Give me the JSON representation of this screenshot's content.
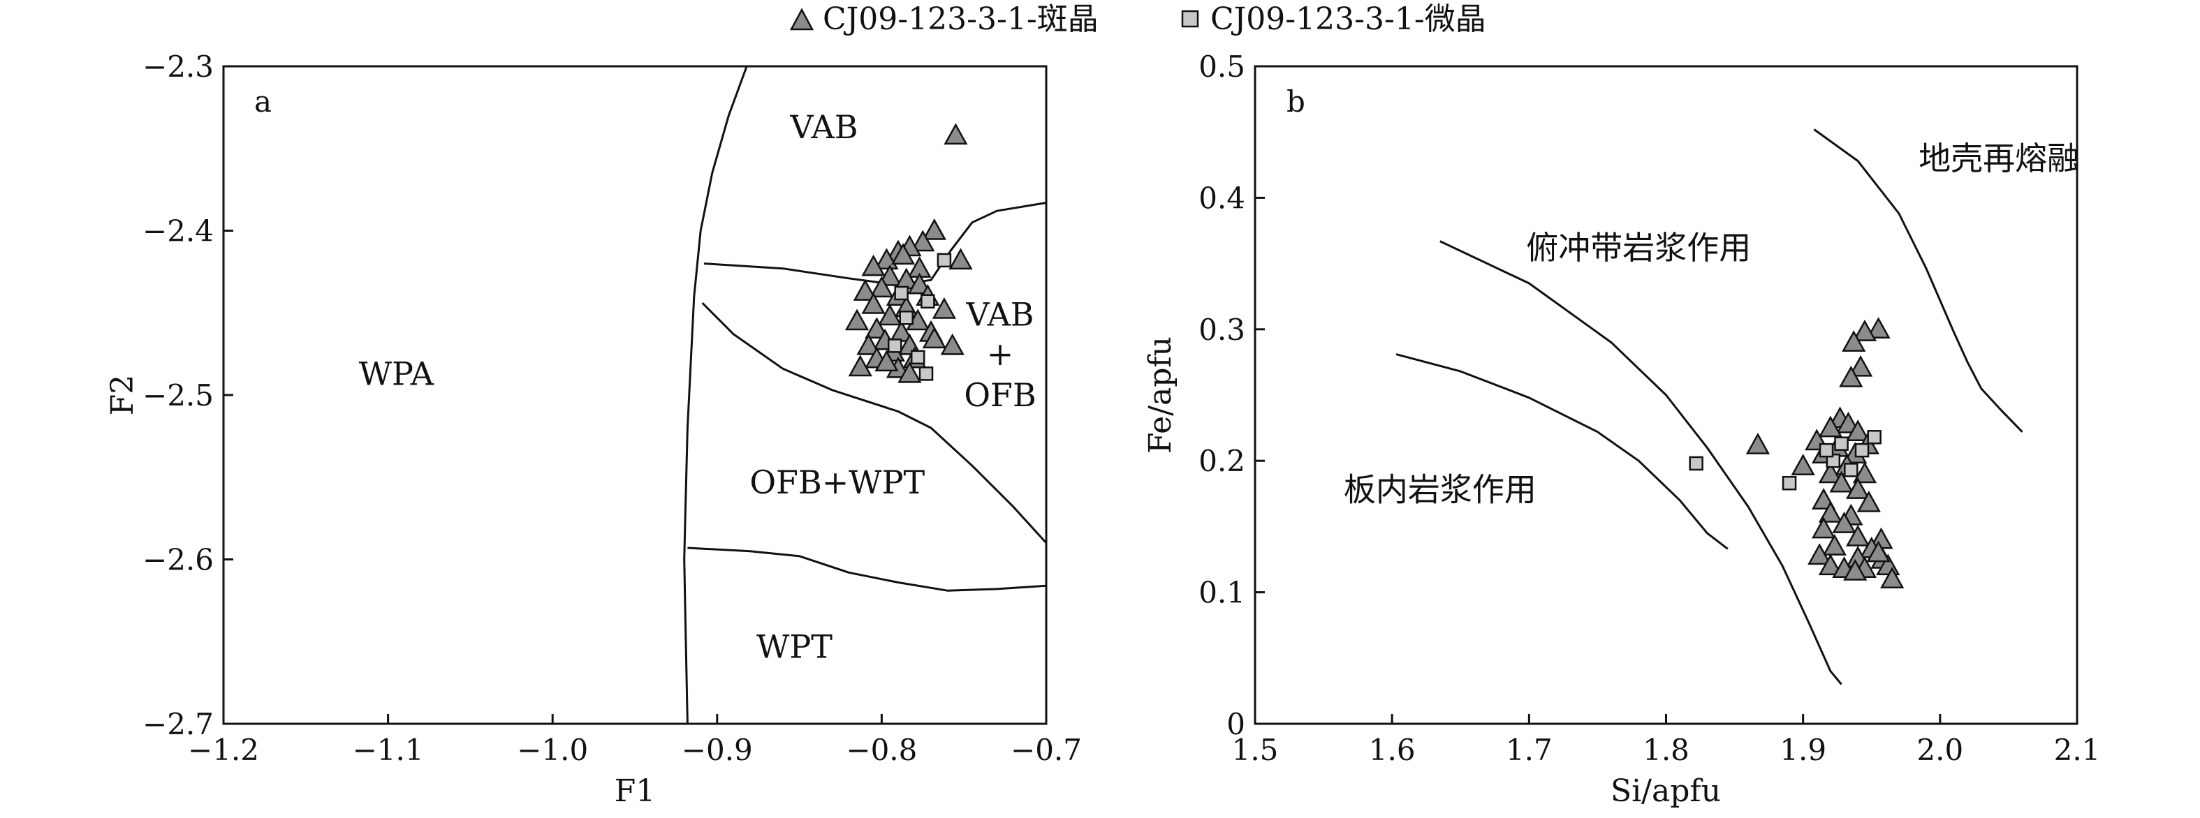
{
  "legend": {
    "items": [
      {
        "label": "CJ09-123-3-1-斑晶",
        "marker": "triangle",
        "color": "#8c8c8c"
      },
      {
        "label": "CJ09-123-3-1-微晶",
        "marker": "square",
        "color": "#c8c8c8"
      }
    ],
    "placement": "top-center"
  },
  "chart_data": [
    {
      "type": "scatter",
      "panel_label": "a",
      "xlabel": "F1",
      "ylabel": "F2",
      "xlim": [
        -1.2,
        -0.7
      ],
      "ylim": [
        -2.7,
        -2.3
      ],
      "xticks": [
        -1.2,
        -1.1,
        -1.0,
        -0.9,
        -0.8,
        -0.7
      ],
      "yticks": [
        -2.3,
        -2.4,
        -2.5,
        -2.6,
        -2.7
      ],
      "xtick_labels": [
        "−1.2",
        "−1.1",
        "−1.0",
        "−0.9",
        "−0.8",
        "−0.7"
      ],
      "ytick_labels": [
        "−2.3",
        "−2.4",
        "−2.5",
        "−2.6",
        "−2.7"
      ],
      "field_labels": [
        {
          "text": "VAB",
          "x": -0.835,
          "y": -2.337
        },
        {
          "text": "WPA",
          "x": -1.095,
          "y": -2.487
        },
        {
          "text": "VAB",
          "x": -0.728,
          "y": -2.451
        },
        {
          "text": "+",
          "x": -0.728,
          "y": -2.475
        },
        {
          "text": "OFB",
          "x": -0.728,
          "y": -2.5
        },
        {
          "text": "OFB+WPT",
          "x": -0.827,
          "y": -2.553
        },
        {
          "text": "WPT",
          "x": -0.853,
          "y": -2.653
        }
      ],
      "boundaries": [
        {
          "name": "WPA boundary",
          "points": [
            [
              -0.882,
              -2.3
            ],
            [
              -0.893,
              -2.33
            ],
            [
              -0.903,
              -2.365
            ],
            [
              -0.91,
              -2.4
            ],
            [
              -0.914,
              -2.44
            ],
            [
              -0.916,
              -2.48
            ],
            [
              -0.918,
              -2.52
            ],
            [
              -0.919,
              -2.56
            ],
            [
              -0.92,
              -2.6
            ],
            [
              -0.919,
              -2.65
            ],
            [
              -0.918,
              -2.7
            ]
          ]
        },
        {
          "name": "VAB lower boundary",
          "points": [
            [
              -0.908,
              -2.42
            ],
            [
              -0.86,
              -2.423
            ],
            [
              -0.82,
              -2.429
            ],
            [
              -0.79,
              -2.433
            ],
            [
              -0.77,
              -2.43
            ],
            [
              -0.758,
              -2.412
            ],
            [
              -0.745,
              -2.395
            ],
            [
              -0.73,
              -2.388
            ],
            [
              -0.7,
              -2.383
            ]
          ]
        },
        {
          "name": "OFB upper boundary",
          "points": [
            [
              -0.909,
              -2.444
            ],
            [
              -0.89,
              -2.463
            ],
            [
              -0.86,
              -2.484
            ],
            [
              -0.83,
              -2.497
            ],
            [
              -0.79,
              -2.51
            ],
            [
              -0.77,
              -2.52
            ],
            [
              -0.745,
              -2.543
            ],
            [
              -0.72,
              -2.568
            ],
            [
              -0.7,
              -2.59
            ]
          ]
        },
        {
          "name": "WPT upper boundary",
          "points": [
            [
              -0.918,
              -2.593
            ],
            [
              -0.88,
              -2.595
            ],
            [
              -0.85,
              -2.598
            ],
            [
              -0.82,
              -2.608
            ],
            [
              -0.79,
              -2.614
            ],
            [
              -0.76,
              -2.619
            ],
            [
              -0.73,
              -2.618
            ],
            [
              -0.7,
              -2.616
            ]
          ]
        }
      ],
      "series": [
        {
          "name": "CJ09-123-3-1-斑晶",
          "marker": "triangle",
          "points": [
            [
              -0.755,
              -2.342
            ],
            [
              -0.768,
              -2.4
            ],
            [
              -0.775,
              -2.407
            ],
            [
              -0.783,
              -2.41
            ],
            [
              -0.79,
              -2.413
            ],
            [
              -0.797,
              -2.418
            ],
            [
              -0.787,
              -2.415
            ],
            [
              -0.752,
              -2.418
            ],
            [
              -0.777,
              -2.423
            ],
            [
              -0.805,
              -2.422
            ],
            [
              -0.795,
              -2.428
            ],
            [
              -0.785,
              -2.43
            ],
            [
              -0.777,
              -2.433
            ],
            [
              -0.8,
              -2.435
            ],
            [
              -0.81,
              -2.437
            ],
            [
              -0.79,
              -2.44
            ],
            [
              -0.772,
              -2.44
            ],
            [
              -0.805,
              -2.445
            ],
            [
              -0.785,
              -2.447
            ],
            [
              -0.762,
              -2.448
            ],
            [
              -0.795,
              -2.452
            ],
            [
              -0.815,
              -2.455
            ],
            [
              -0.778,
              -2.455
            ],
            [
              -0.803,
              -2.46
            ],
            [
              -0.788,
              -2.462
            ],
            [
              -0.77,
              -2.462
            ],
            [
              -0.798,
              -2.467
            ],
            [
              -0.808,
              -2.47
            ],
            [
              -0.783,
              -2.47
            ],
            [
              -0.757,
              -2.47
            ],
            [
              -0.793,
              -2.474
            ],
            [
              -0.803,
              -2.478
            ],
            [
              -0.78,
              -2.478
            ],
            [
              -0.768,
              -2.466
            ],
            [
              -0.813,
              -2.483
            ],
            [
              -0.79,
              -2.484
            ],
            [
              -0.783,
              -2.487
            ],
            [
              -0.797,
              -2.48
            ]
          ]
        },
        {
          "name": "CJ09-123-3-1-微晶",
          "marker": "square",
          "points": [
            [
              -0.762,
              -2.418
            ],
            [
              -0.788,
              -2.438
            ],
            [
              -0.772,
              -2.443
            ],
            [
              -0.785,
              -2.453
            ],
            [
              -0.792,
              -2.47
            ],
            [
              -0.778,
              -2.477
            ],
            [
              -0.773,
              -2.487
            ]
          ]
        }
      ]
    },
    {
      "type": "scatter",
      "panel_label": "b",
      "xlabel": "Si/apfu",
      "ylabel": "Fe/apfu",
      "xlim": [
        1.5,
        2.1
      ],
      "ylim": [
        0,
        0.5
      ],
      "xticks": [
        1.5,
        1.6,
        1.7,
        1.8,
        1.9,
        2.0,
        2.1
      ],
      "yticks": [
        0,
        0.1,
        0.2,
        0.3,
        0.4,
        0.5
      ],
      "xtick_labels": [
        "1.5",
        "1.6",
        "1.7",
        "1.8",
        "1.9",
        "2.0",
        "2.1"
      ],
      "ytick_labels": [
        "0",
        "0.1",
        "0.2",
        "0.3",
        "0.4",
        "0.5"
      ],
      "field_labels": [
        {
          "text": "地壳再熔融",
          "x": 2.043,
          "y": 0.43
        },
        {
          "text": "俯冲带岩浆作用",
          "x": 1.78,
          "y": 0.362
        },
        {
          "text": "板内岩浆作用",
          "x": 1.635,
          "y": 0.178
        }
      ],
      "boundaries": [
        {
          "name": "crustal remelting boundary",
          "points": [
            [
              1.908,
              0.452
            ],
            [
              1.94,
              0.428
            ],
            [
              1.97,
              0.388
            ],
            [
              1.99,
              0.346
            ],
            [
              2.01,
              0.298
            ],
            [
              2.02,
              0.275
            ],
            [
              2.03,
              0.255
            ],
            [
              2.045,
              0.238
            ],
            [
              2.06,
              0.222
            ]
          ]
        },
        {
          "name": "subduction boundary",
          "points": [
            [
              1.635,
              0.367
            ],
            [
              1.7,
              0.335
            ],
            [
              1.76,
              0.29
            ],
            [
              1.8,
              0.25
            ],
            [
              1.83,
              0.21
            ],
            [
              1.86,
              0.165
            ],
            [
              1.885,
              0.12
            ],
            [
              1.905,
              0.075
            ],
            [
              1.92,
              0.04
            ],
            [
              1.928,
              0.03
            ]
          ]
        },
        {
          "name": "intraplate boundary",
          "points": [
            [
              1.603,
              0.281
            ],
            [
              1.65,
              0.268
            ],
            [
              1.7,
              0.248
            ],
            [
              1.75,
              0.222
            ],
            [
              1.78,
              0.2
            ],
            [
              1.81,
              0.17
            ],
            [
              1.83,
              0.145
            ],
            [
              1.845,
              0.133
            ]
          ]
        }
      ],
      "series": [
        {
          "name": "CJ09-123-3-1-斑晶",
          "marker": "triangle",
          "points": [
            [
              1.867,
              0.212
            ],
            [
              1.955,
              0.3
            ],
            [
              1.945,
              0.298
            ],
            [
              1.937,
              0.29
            ],
            [
              1.942,
              0.271
            ],
            [
              1.935,
              0.263
            ],
            [
              1.927,
              0.232
            ],
            [
              1.933,
              0.228
            ],
            [
              1.92,
              0.225
            ],
            [
              1.94,
              0.222
            ],
            [
              1.91,
              0.215
            ],
            [
              1.947,
              0.212
            ],
            [
              1.925,
              0.21
            ],
            [
              1.915,
              0.205
            ],
            [
              1.938,
              0.205
            ],
            [
              1.9,
              0.196
            ],
            [
              1.932,
              0.196
            ],
            [
              1.92,
              0.19
            ],
            [
              1.945,
              0.19
            ],
            [
              1.928,
              0.183
            ],
            [
              1.94,
              0.178
            ],
            [
              1.915,
              0.17
            ],
            [
              1.948,
              0.168
            ],
            [
              1.92,
              0.16
            ],
            [
              1.935,
              0.158
            ],
            [
              1.93,
              0.152
            ],
            [
              1.915,
              0.148
            ],
            [
              1.94,
              0.142
            ],
            [
              1.957,
              0.14
            ],
            [
              1.923,
              0.135
            ],
            [
              1.95,
              0.133
            ],
            [
              1.912,
              0.128
            ],
            [
              1.94,
              0.126
            ],
            [
              1.958,
              0.125
            ],
            [
              1.92,
              0.12
            ],
            [
              1.93,
              0.118
            ],
            [
              1.945,
              0.118
            ],
            [
              1.962,
              0.12
            ],
            [
              1.965,
              0.11
            ],
            [
              1.938,
              0.116
            ],
            [
              1.955,
              0.13
            ]
          ]
        },
        {
          "name": "CJ09-123-3-1-微晶",
          "marker": "square",
          "points": [
            [
              1.822,
              0.198
            ],
            [
              1.89,
              0.183
            ],
            [
              1.952,
              0.218
            ],
            [
              1.928,
              0.213
            ],
            [
              1.922,
              0.2
            ],
            [
              1.935,
              0.193
            ],
            [
              1.943,
              0.208
            ],
            [
              1.917,
              0.208
            ]
          ]
        }
      ]
    }
  ]
}
